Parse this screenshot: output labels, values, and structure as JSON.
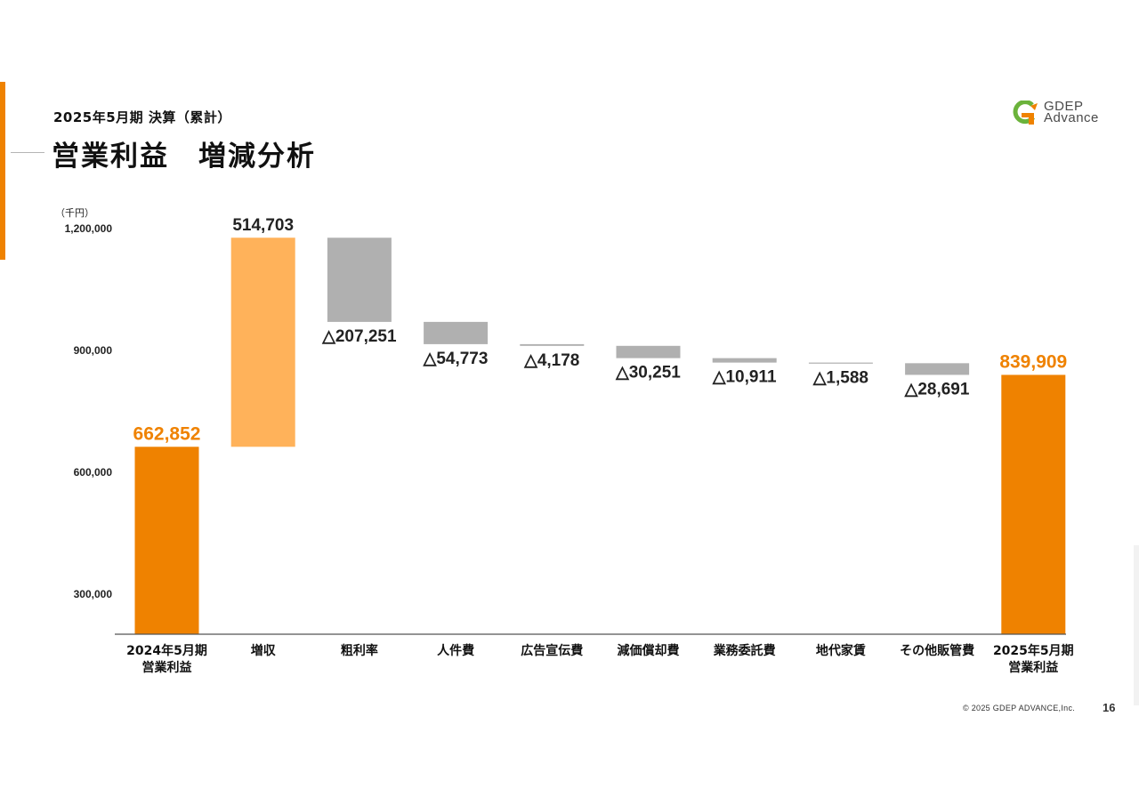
{
  "header": {
    "subtitle": "2025年5月期 決算（累計）",
    "title": "営業利益　増減分析"
  },
  "logo": {
    "line1": "GDEP",
    "line2": "Advance",
    "icon": "gdep-logo-icon",
    "colors": [
      "#6BB33B",
      "#EF8200"
    ]
  },
  "colors": {
    "accent": "#EF8200",
    "increase": "#FFB25A",
    "decrease": "#B0B0B0",
    "total": "#EF8200"
  },
  "chart_data": {
    "type": "waterfall",
    "unit_label": "（千円）",
    "ylim": [
      200000,
      1200000
    ],
    "y_ticks": [
      {
        "value": 1200000,
        "label": "1,200,000"
      },
      {
        "value": 900000,
        "label": "900,000"
      },
      {
        "value": 600000,
        "label": "600,000"
      },
      {
        "value": 300000,
        "label": "300,000"
      }
    ],
    "grid": false,
    "steps": [
      {
        "category": [
          "2024年5月期",
          "営業利益"
        ],
        "kind": "total",
        "value": 662852,
        "label": "662,852"
      },
      {
        "category": [
          "増収"
        ],
        "kind": "increase",
        "value": 514703,
        "label": "514,703"
      },
      {
        "category": [
          "粗利率"
        ],
        "kind": "decrease",
        "value": -207251,
        "label": "△207,251"
      },
      {
        "category": [
          "人件費"
        ],
        "kind": "decrease",
        "value": -54773,
        "label": "△54,773"
      },
      {
        "category": [
          "広告宣伝費"
        ],
        "kind": "decrease",
        "value": -4178,
        "label": "△4,178"
      },
      {
        "category": [
          "減価償却費"
        ],
        "kind": "decrease",
        "value": -30251,
        "label": "△30,251"
      },
      {
        "category": [
          "業務委託費"
        ],
        "kind": "decrease",
        "value": -10911,
        "label": "△10,911"
      },
      {
        "category": [
          "地代家賃"
        ],
        "kind": "decrease",
        "value": -1588,
        "label": "△1,588"
      },
      {
        "category": [
          "その他販管費"
        ],
        "kind": "decrease",
        "value": -28691,
        "label": "△28,691"
      },
      {
        "category": [
          "2025年5月期",
          "営業利益"
        ],
        "kind": "total",
        "value": 839909,
        "label": "839,909"
      }
    ]
  },
  "footer": {
    "copyright": "© 2025 GDEP ADVANCE,Inc.",
    "page_number": "16"
  }
}
